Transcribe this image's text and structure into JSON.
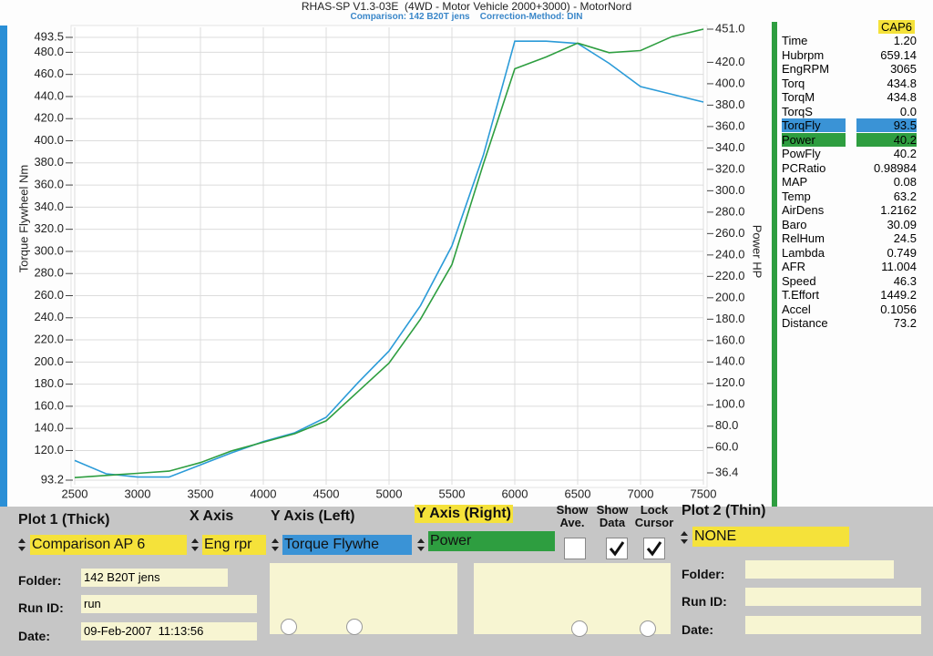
{
  "header": {
    "title": "RHAS-SP V1.3-03E  (4WD - Motor Vehicle 2000+3000) - MotorNord",
    "subtitle": "Comparison: 142 B20T jens    Correction-Method: DIN"
  },
  "chart_data": {
    "type": "line",
    "x": [
      2500,
      2750,
      3000,
      3250,
      3500,
      3750,
      4000,
      4250,
      4500,
      4750,
      5000,
      5250,
      5500,
      5750,
      6000,
      6250,
      6500,
      6750,
      7000,
      7250,
      7500
    ],
    "xlim": [
      2500,
      7500
    ],
    "xticks": [
      2500,
      3000,
      3500,
      4000,
      4500,
      5000,
      5500,
      6000,
      6500,
      7000,
      7500
    ],
    "ylim": [
      93.2,
      493.5
    ],
    "yticks": [
      93.2,
      {
        "value": 120,
        "label": "120.0"
      },
      {
        "value": 140,
        "label": "140.0"
      },
      {
        "value": 160,
        "label": "160.0"
      },
      {
        "value": 180,
        "label": "180.0"
      },
      {
        "value": 200,
        "label": "200.0"
      },
      {
        "value": 220,
        "label": "220.0"
      },
      {
        "value": 240,
        "label": "240.0"
      },
      {
        "value": 260,
        "label": "260.0"
      },
      {
        "value": 280,
        "label": "280.0"
      },
      {
        "value": 300,
        "label": "300.0"
      },
      {
        "value": 320,
        "label": "320.0"
      },
      {
        "value": 340,
        "label": "340.0"
      },
      {
        "value": 360,
        "label": "360.0"
      },
      {
        "value": 380,
        "label": "380.0"
      },
      {
        "value": 400,
        "label": "400.0"
      },
      {
        "value": 420,
        "label": "420.0"
      },
      {
        "value": 440,
        "label": "440.0"
      },
      {
        "value": 460,
        "label": "460.0"
      },
      {
        "value": 480,
        "label": "480.0"
      },
      493.5
    ],
    "y2lim": [
      36.4,
      451.0
    ],
    "y2ticks": [
      36.4,
      {
        "value": 60,
        "label": "60.0"
      },
      {
        "value": 80,
        "label": "80.0"
      },
      {
        "value": 100,
        "label": "100.0"
      },
      {
        "value": 120,
        "label": "120.0"
      },
      {
        "value": 140,
        "label": "140.0"
      },
      {
        "value": 160,
        "label": "160.0"
      },
      {
        "value": 180,
        "label": "180.0"
      },
      {
        "value": 200,
        "label": "200.0"
      },
      {
        "value": 220,
        "label": "220.0"
      },
      {
        "value": 240,
        "label": "240.0"
      },
      {
        "value": 260,
        "label": "260.0"
      },
      {
        "value": 280,
        "label": "280.0"
      },
      {
        "value": 300,
        "label": "300.0"
      },
      {
        "value": 320,
        "label": "320.0"
      },
      {
        "value": 340,
        "label": "340.0"
      },
      {
        "value": 360,
        "label": "360.0"
      },
      {
        "value": 380,
        "label": "380.0"
      },
      {
        "value": 400,
        "label": "400.0"
      },
      {
        "value": 420,
        "label": "420.0"
      },
      {
        "value": 451,
        "label": "451.0"
      }
    ],
    "y_label": "Torque Flywheel Nm",
    "y2_label": "Power HP",
    "grid": true,
    "series": [
      {
        "color": "#2b9bd8",
        "values": [
          111,
          99,
          96,
          96,
          107,
          118,
          128,
          136,
          150,
          181,
          210,
          251,
          305,
          387,
          490,
          490,
          488,
          470,
          449,
          442,
          435
        ]
      },
      {
        "color": "#2e9e40",
        "axis": "y2",
        "values": [
          32,
          34,
          36,
          38,
          46,
          57,
          65,
          73,
          85,
          112,
          139,
          180,
          231,
          325,
          414,
          425,
          438,
          429,
          431,
          444,
          451
        ]
      }
    ]
  },
  "readout": {
    "badge": "CAP6",
    "rows": [
      {
        "label": "Time",
        "value": "1.20"
      },
      {
        "label": "Hubrpm",
        "value": "659.14"
      },
      {
        "label": "EngRPM",
        "value": "3065"
      },
      {
        "label": "Torq",
        "value": "434.8"
      },
      {
        "label": "TorqM",
        "value": "434.8"
      },
      {
        "label": "TorqS",
        "value": "0.0"
      },
      {
        "label": "TorqFly",
        "value": "93.5",
        "highlight": "#3a93d6"
      },
      {
        "label": "Power",
        "value": "40.2",
        "highlight": "#2e9e40"
      },
      {
        "label": "PowFly",
        "value": "40.2"
      },
      {
        "label": "PCRatio",
        "value": "0.98984"
      },
      {
        "label": "MAP",
        "value": "0.08"
      },
      {
        "label": "Temp",
        "value": "63.2"
      },
      {
        "label": "AirDens",
        "value": "1.2162"
      },
      {
        "label": "Baro",
        "value": "30.09"
      },
      {
        "label": "RelHum",
        "value": "24.5"
      },
      {
        "label": "Lambda",
        "value": "0.749"
      },
      {
        "label": "AFR",
        "value": "11.004"
      },
      {
        "label": "Speed",
        "value": "46.3"
      },
      {
        "label": "T.Effort",
        "value": "1449.2"
      },
      {
        "label": "Accel",
        "value": "0.1056"
      },
      {
        "label": "Distance",
        "value": "73.2"
      }
    ]
  },
  "controls": {
    "plot1": {
      "title": "Plot 1 (Thick)",
      "select": "Comparison AP 6",
      "folder_label": "Folder:",
      "folder": "142 B20T jens",
      "run_label": "Run ID:",
      "run": "run",
      "date_label": "Date:",
      "date": "09-Feb-2007  11:13:56"
    },
    "x_axis": {
      "title": "X Axis",
      "select": "Eng rpr"
    },
    "y_left": {
      "title": "Y Axis (Left)",
      "select": "Torque Flywhe"
    },
    "y_right": {
      "title": "Y Axis (Right)",
      "select": "Power"
    },
    "show_ave": {
      "title": "Show Ave.",
      "checked": false
    },
    "show_data": {
      "title": "Show Data",
      "checked": true
    },
    "lock_cursor": {
      "title": "Lock Cursor",
      "checked": true
    },
    "plot2": {
      "title": "Plot 2 (Thin)",
      "select": "NONE",
      "folder_label": "Folder:",
      "run_label": "Run ID:",
      "date_label": "Date:"
    }
  }
}
